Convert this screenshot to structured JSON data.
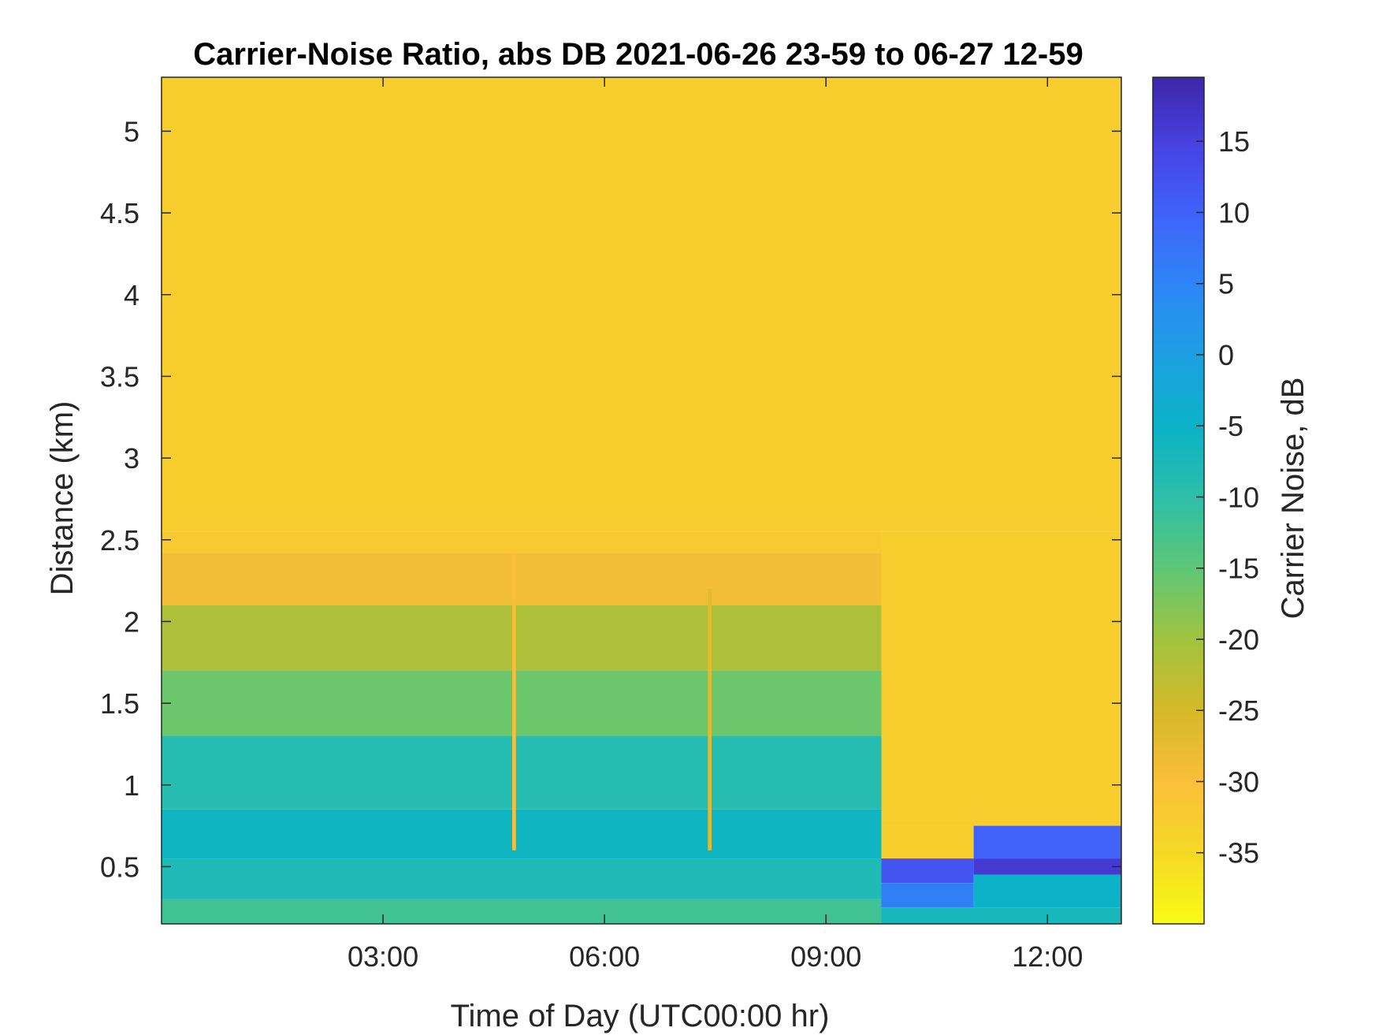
{
  "chart_data": {
    "type": "heatmap",
    "title": "Carrier-Noise Ratio, abs DB 2021-06-26 23-59 to 06-27 12-59",
    "xlabel": "Time of Day (UTC00:00 hr)",
    "ylabel": "Distance (km)",
    "colorbar_label": "Carrier Noise, dB",
    "xlim": [
      0,
      13
    ],
    "ylim": [
      0.15,
      5.33
    ],
    "clim": [
      -40,
      19.5
    ],
    "x_ticks": [
      3,
      6,
      9,
      12
    ],
    "x_tick_labels": [
      "03:00",
      "06:00",
      "09:00",
      "12:00"
    ],
    "y_ticks": [
      0.5,
      1,
      1.5,
      2,
      2.5,
      3,
      3.5,
      4,
      4.5,
      5
    ],
    "y_tick_labels": [
      "0.5",
      "1",
      "1.5",
      "2",
      "2.5",
      "3",
      "3.5",
      "4",
      "4.5",
      "5"
    ],
    "colorbar_ticks": [
      15,
      10,
      5,
      0,
      -5,
      -10,
      -15,
      -20,
      -25,
      -30,
      -35
    ],
    "colorbar_tick_labels": [
      "15",
      "10",
      "5",
      "0",
      "-5",
      "-10",
      "-15",
      "-20",
      "-25",
      "-30",
      "-35"
    ],
    "colormap": "parula",
    "colormap_colors": [
      "#3e26a8",
      "#4743e4",
      "#3f65fb",
      "#2c87f5",
      "#1ba1e1",
      "#0bb3c6",
      "#2fbfa7",
      "#60c775",
      "#a3c33d",
      "#d6b928",
      "#fbbf3a",
      "#f5d925",
      "#f9fb15"
    ],
    "regions": [
      {
        "x": [
          0,
          13
        ],
        "y": [
          2.55,
          5.33
        ],
        "value": -33
      },
      {
        "x": [
          0,
          9.75
        ],
        "y": [
          2.42,
          2.55
        ],
        "value": -32
      },
      {
        "x": [
          0,
          9.75
        ],
        "y": [
          2.1,
          2.42
        ],
        "value": -29
      },
      {
        "x": [
          0,
          9.75
        ],
        "y": [
          1.7,
          2.1
        ],
        "value": -21
      },
      {
        "x": [
          0,
          9.75
        ],
        "y": [
          1.3,
          1.7
        ],
        "value": -16
      },
      {
        "x": [
          0,
          9.75
        ],
        "y": [
          0.85,
          1.3
        ],
        "value": -9
      },
      {
        "x": [
          0,
          9.75
        ],
        "y": [
          0.55,
          0.85
        ],
        "value": -6
      },
      {
        "x": [
          0,
          9.75
        ],
        "y": [
          0.3,
          0.55
        ],
        "value": -8
      },
      {
        "x": [
          0,
          9.75
        ],
        "y": [
          0.15,
          0.3
        ],
        "value": -12
      },
      {
        "x": [
          9.75,
          13
        ],
        "y": [
          0.75,
          2.55
        ],
        "value": -33
      },
      {
        "x": [
          9.75,
          11
        ],
        "y": [
          0.55,
          0.75
        ],
        "value": -33
      },
      {
        "x": [
          9.75,
          11
        ],
        "y": [
          0.4,
          0.55
        ],
        "value": 12
      },
      {
        "x": [
          9.75,
          11
        ],
        "y": [
          0.25,
          0.4
        ],
        "value": 6
      },
      {
        "x": [
          9.75,
          13
        ],
        "y": [
          0.15,
          0.25
        ],
        "value": -7
      },
      {
        "x": [
          11,
          13
        ],
        "y": [
          0.55,
          0.75
        ],
        "value": 10
      },
      {
        "x": [
          11,
          13
        ],
        "y": [
          0.45,
          0.55
        ],
        "value": 16
      },
      {
        "x": [
          11,
          13
        ],
        "y": [
          0.25,
          0.45
        ],
        "value": -5
      },
      {
        "x": [
          4.75,
          4.8
        ],
        "y": [
          0.6,
          2.42
        ],
        "value": -30
      },
      {
        "x": [
          7.4,
          7.45
        ],
        "y": [
          0.6,
          2.2
        ],
        "value": -27
      }
    ]
  }
}
